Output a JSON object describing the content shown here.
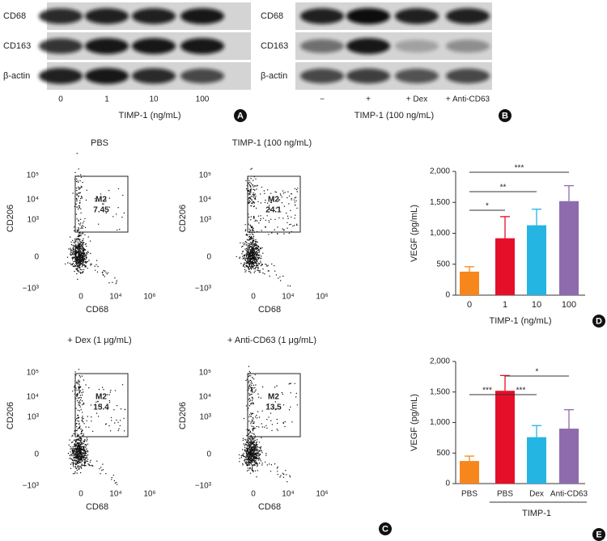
{
  "panel_a": {
    "rows": [
      "CD68",
      "CD163",
      "β-actin"
    ],
    "lanes": [
      "0",
      "1",
      "10",
      "100"
    ],
    "axis_title": "TIMP-1 (ng/mL)",
    "letter": "A"
  },
  "panel_b": {
    "rows": [
      "CD68",
      "CD163",
      "β-actin"
    ],
    "lanes": [
      "−",
      "+",
      "+ Dex",
      "+ Anti-CD63"
    ],
    "axis_title": "TIMP-1 (100 ng/mL)",
    "letter": "B"
  },
  "panel_c": {
    "plots": [
      {
        "title": "PBS",
        "gate_label": "M2",
        "gate_value": 7.45
      },
      {
        "title": "TIMP-1 (100 ng/mL)",
        "gate_label": "M2",
        "gate_value": 24.1
      },
      {
        "title": "+ Dex (1 μg/mL)",
        "gate_label": "M2",
        "gate_value": 15.4
      },
      {
        "title": "+ Anti-CD63 (1 μg/mL)",
        "gate_label": "M2",
        "gate_value": 13.5
      }
    ],
    "y_axis_label": "CD206",
    "x_axis_label": "CD68",
    "y_ticks": [
      "10⁵",
      "10⁴",
      "10³",
      "0",
      "−10³"
    ],
    "x_ticks": [
      "0",
      "10⁴",
      "10⁶"
    ],
    "letter": "C"
  },
  "chart_data": [
    {
      "type": "bar",
      "categories": [
        "0",
        "1",
        "10",
        "100"
      ],
      "values": [
        380,
        920,
        1130,
        1520
      ],
      "errors": [
        80,
        350,
        260,
        250
      ],
      "colors": [
        "#f7861d",
        "#e60f2a",
        "#25b5e3",
        "#8e6bad"
      ],
      "ylim": [
        0,
        2000
      ],
      "yticks": [
        0,
        500,
        {
          "value": 1000,
          "label": "1,000"
        },
        {
          "value": 1500,
          "label": "1,500"
        },
        {
          "value": 2000,
          "label": "2,000"
        }
      ],
      "x_label": "TIMP-1 (ng/mL)",
      "y_label": "VEGF (pg/mL)",
      "significance": [
        "*",
        "**",
        "***"
      ],
      "letter": "D"
    },
    {
      "type": "bar",
      "categories": [
        "PBS",
        "PBS",
        "Dex",
        "Anti-CD63"
      ],
      "values": [
        370,
        1520,
        760,
        900
      ],
      "errors": [
        80,
        250,
        190,
        310
      ],
      "colors": [
        "#f7861d",
        "#e60f2a",
        "#25b5e3",
        "#8e6bad"
      ],
      "ylim": [
        0,
        2000
      ],
      "yticks": [
        0,
        500,
        {
          "value": 1000,
          "label": "1,000"
        },
        {
          "value": 1500,
          "label": "1,500"
        },
        {
          "value": 2000,
          "label": "2,000"
        }
      ],
      "group_label": "TIMP-1",
      "y_label": "VEGF (pg/mL)",
      "significance": [
        "***",
        "***",
        "*"
      ],
      "letter": "E"
    }
  ]
}
